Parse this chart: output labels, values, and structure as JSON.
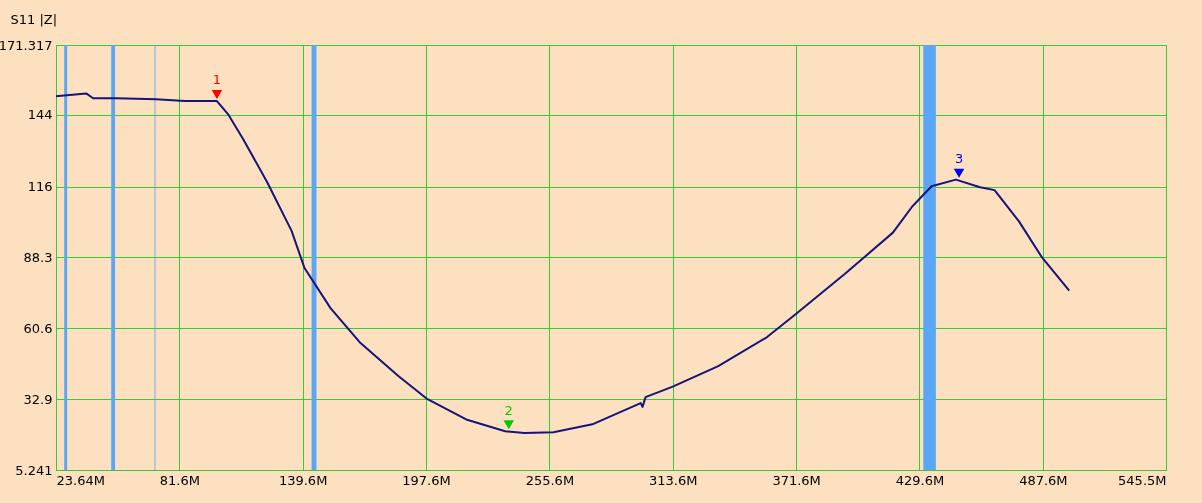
{
  "chart_data": {
    "type": "line",
    "ylabel": "S11 |Z|",
    "xlim": [
      23.64,
      545.5
    ],
    "ylim": [
      5.241,
      171.317
    ],
    "xticks": [
      {
        "value": 23.64,
        "label": "23.64M"
      },
      {
        "value": 81.6,
        "label": "81.6M"
      },
      {
        "value": 139.6,
        "label": "139.6M"
      },
      {
        "value": 197.6,
        "label": "197.6M"
      },
      {
        "value": 255.6,
        "label": "255.6M"
      },
      {
        "value": 313.6,
        "label": "313.6M"
      },
      {
        "value": 371.6,
        "label": "371.6M"
      },
      {
        "value": 429.6,
        "label": "429.6M"
      },
      {
        "value": 487.6,
        "label": "487.6M"
      },
      {
        "value": 545.5,
        "label": "545.5M"
      }
    ],
    "yticks": [
      5.241,
      32.9,
      60.6,
      88.3,
      116,
      144,
      171.317
    ],
    "grid": true,
    "series": [
      {
        "color": "#14147a",
        "x": [
          23.64,
          37.8,
          41.1,
          52.3,
          70.6,
          84.3,
          99.3,
          104.7,
          111.6,
          123.0,
          134.4,
          140.4,
          152.7,
          166.4,
          184.6,
          198.3,
          216.5,
          234.8,
          243.9,
          257.5,
          275.8,
          298.5,
          299.4,
          300.8,
          313.6,
          335.0,
          357.8,
          371.5,
          394.3,
          417.1,
          426.2,
          435.3,
          446.7,
          458.1,
          464.9,
          476.3,
          487.2,
          500.0
        ],
        "values": [
          151.3,
          152.4,
          150.5,
          150.5,
          150.1,
          149.4,
          149.4,
          144.1,
          134.6,
          117.6,
          98.7,
          84.3,
          68.5,
          55.2,
          42.0,
          32.9,
          25.0,
          20.4,
          19.7,
          20.0,
          23.1,
          31.4,
          29.9,
          33.7,
          37.8,
          45.8,
          57.1,
          66.2,
          81.7,
          98.0,
          108.2,
          116.1,
          118.7,
          115.7,
          114.6,
          102.5,
          88.3,
          75.3
        ]
      },
      {
        "type": "scatter",
        "marker": "triangle",
        "x": [
          99.3,
          236.5,
          448.2
        ],
        "values": [
          152.0,
          22.9,
          121.2
        ],
        "colors": [
          "#ff0000",
          "#00cc00",
          "#0000ff"
        ]
      }
    ],
    "annotations": [
      {
        "text": "1",
        "x": 99.3,
        "y": 152.0
      },
      {
        "text": "2",
        "x": 236.5,
        "y": 22.9
      },
      {
        "text": "3",
        "x": 448.2,
        "y": 121.2
      }
    ],
    "bands": [
      {
        "axis": "x",
        "from": 27.5,
        "to": 28.9,
        "color": "#5aa8f5"
      },
      {
        "axis": "x",
        "from": 49.6,
        "to": 51.4,
        "color": "#5aa8f5"
      },
      {
        "axis": "x",
        "from": 70.0,
        "to": 70.4,
        "color": "#5aa8f5"
      },
      {
        "axis": "x",
        "from": 143.8,
        "to": 146.1,
        "color": "#5aa8f5"
      },
      {
        "axis": "x",
        "from": 431.4,
        "to": 437.3,
        "color": "#5aa8f5"
      }
    ]
  }
}
